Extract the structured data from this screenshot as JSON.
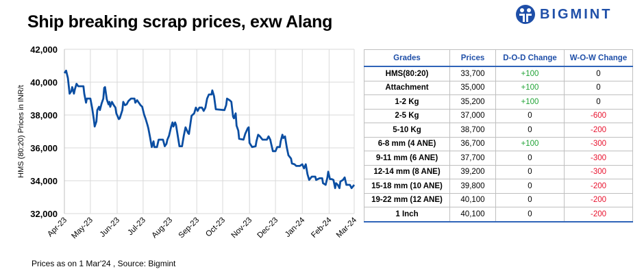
{
  "title": "Ship breaking scrap prices, exw Alang",
  "logo": {
    "text": "BIGMINT",
    "color": "#1f4fa8"
  },
  "source": "Prices as on 1 Mar'24 , Source: Bigmint",
  "colors": {
    "line": "#0b4ea2",
    "positive": "#21a336",
    "negative": "#e8112d",
    "header": "#1f4fa8"
  },
  "table": {
    "headers": [
      "Grades",
      "Prices",
      "D-O-D Change",
      "W-O-W Change"
    ],
    "rows": [
      [
        "HMS(80:20)",
        "33,700",
        "+100",
        "0"
      ],
      [
        "Attachment",
        "35,000",
        "+100",
        "0"
      ],
      [
        "1-2 Kg",
        "35,200",
        "+100",
        "0"
      ],
      [
        "2-5 Kg",
        "37,000",
        "0",
        "-600"
      ],
      [
        "5-10 Kg",
        "38,700",
        "0",
        "-200"
      ],
      [
        "6-8 mm (4 ANE)",
        "36,700",
        "+100",
        "-300"
      ],
      [
        "9-11 mm (6 ANE)",
        "37,700",
        "0",
        "-300"
      ],
      [
        "12-14 mm (8 ANE)",
        "39,200",
        "0",
        "-300"
      ],
      [
        "15-18 mm (10 ANE)",
        "39,800",
        "0",
        "-200"
      ],
      [
        "19-22 mm (12 ANE)",
        "40,100",
        "0",
        "-200"
      ],
      [
        "1 Inch",
        "40,100",
        "0",
        "-200"
      ]
    ]
  },
  "chart_data": {
    "type": "line",
    "title": "",
    "xlabel": "",
    "ylabel": "HMS (80:20) Prices in INR/t",
    "ylim": [
      32000,
      42000
    ],
    "yticks": [
      "32,000",
      "34,000",
      "36,000",
      "38,000",
      "40,000",
      "42,000"
    ],
    "xlim": [
      "2023-04-01",
      "2024-03-01"
    ],
    "xticks": [
      "Apr-23",
      "May-23",
      "Jun-23",
      "Jul-23",
      "Aug-23",
      "Sep-23",
      "Oct-23",
      "Nov-23",
      "Dec-23",
      "Jan-24",
      "Feb-24",
      "Mar-24"
    ],
    "grid": true,
    "legend": "none",
    "series": [
      {
        "points": [
          [
            "2023-04-01",
            40550
          ],
          [
            "2023-04-03",
            40700
          ],
          [
            "2023-04-05",
            40250
          ],
          [
            "2023-04-07",
            39300
          ],
          [
            "2023-04-09",
            39450
          ],
          [
            "2023-04-10",
            39700
          ],
          [
            "2023-04-12",
            39300
          ],
          [
            "2023-04-13",
            39550
          ],
          [
            "2023-04-15",
            39900
          ],
          [
            "2023-04-17",
            39750
          ],
          [
            "2023-04-23",
            39750
          ],
          [
            "2023-04-24",
            39300
          ],
          [
            "2023-04-26",
            38750
          ],
          [
            "2023-04-27",
            39000
          ],
          [
            "2023-05-01",
            39000
          ],
          [
            "2023-05-03",
            38450
          ],
          [
            "2023-05-05",
            37750
          ],
          [
            "2023-05-06",
            37300
          ],
          [
            "2023-05-08",
            37600
          ],
          [
            "2023-05-09",
            38300
          ],
          [
            "2023-05-11",
            38500
          ],
          [
            "2023-05-12",
            38300
          ],
          [
            "2023-05-14",
            38700
          ],
          [
            "2023-05-16",
            39000
          ],
          [
            "2023-05-17",
            39650
          ],
          [
            "2023-05-18",
            39700
          ],
          [
            "2023-05-20",
            38950
          ],
          [
            "2023-05-22",
            38650
          ],
          [
            "2023-05-23",
            38800
          ],
          [
            "2023-05-24",
            38500
          ],
          [
            "2023-05-26",
            38800
          ],
          [
            "2023-05-28",
            38600
          ],
          [
            "2023-05-30",
            38450
          ],
          [
            "2023-05-31",
            38100
          ],
          [
            "2023-06-03",
            37750
          ],
          [
            "2023-06-04",
            37800
          ],
          [
            "2023-06-07",
            38300
          ],
          [
            "2023-06-08",
            38800
          ],
          [
            "2023-06-10",
            38600
          ],
          [
            "2023-06-12",
            38650
          ],
          [
            "2023-06-14",
            38850
          ],
          [
            "2023-06-17",
            39000
          ],
          [
            "2023-06-21",
            39000
          ],
          [
            "2023-06-22",
            38750
          ],
          [
            "2023-06-24",
            38900
          ],
          [
            "2023-06-26",
            38750
          ],
          [
            "2023-06-28",
            38600
          ],
          [
            "2023-06-30",
            38500
          ],
          [
            "2023-07-02",
            38050
          ],
          [
            "2023-07-04",
            37750
          ],
          [
            "2023-07-06",
            37400
          ],
          [
            "2023-07-07",
            37200
          ],
          [
            "2023-07-09",
            36650
          ],
          [
            "2023-07-11",
            36050
          ],
          [
            "2023-07-13",
            36400
          ],
          [
            "2023-07-14",
            36050
          ],
          [
            "2023-07-17",
            36050
          ],
          [
            "2023-07-19",
            36500
          ],
          [
            "2023-07-24",
            36500
          ],
          [
            "2023-07-26",
            36100
          ],
          [
            "2023-07-28",
            36250
          ],
          [
            "2023-07-29",
            36500
          ],
          [
            "2023-07-31",
            36750
          ],
          [
            "2023-08-02",
            37200
          ],
          [
            "2023-08-04",
            37550
          ],
          [
            "2023-08-05",
            37300
          ],
          [
            "2023-08-07",
            37550
          ],
          [
            "2023-08-08",
            37400
          ],
          [
            "2023-08-10",
            36750
          ],
          [
            "2023-08-12",
            36100
          ],
          [
            "2023-08-15",
            36100
          ],
          [
            "2023-08-17",
            36750
          ],
          [
            "2023-08-19",
            37250
          ],
          [
            "2023-08-22",
            36900
          ],
          [
            "2023-08-23",
            36850
          ],
          [
            "2023-08-26",
            37950
          ],
          [
            "2023-08-29",
            38100
          ],
          [
            "2023-08-31",
            38450
          ],
          [
            "2023-09-02",
            38250
          ],
          [
            "2023-09-04",
            38450
          ],
          [
            "2023-09-07",
            38450
          ],
          [
            "2023-09-09",
            38250
          ],
          [
            "2023-09-11",
            38450
          ],
          [
            "2023-09-13",
            39000
          ],
          [
            "2023-09-15",
            39250
          ],
          [
            "2023-09-18",
            39250
          ],
          [
            "2023-09-19",
            39500
          ],
          [
            "2023-09-21",
            39150
          ],
          [
            "2023-09-23",
            38350
          ],
          [
            "2023-10-03",
            38300
          ],
          [
            "2023-10-05",
            38600
          ],
          [
            "2023-10-06",
            39000
          ],
          [
            "2023-10-09",
            38900
          ],
          [
            "2023-10-11",
            38800
          ],
          [
            "2023-10-13",
            37900
          ],
          [
            "2023-10-14",
            37800
          ],
          [
            "2023-10-16",
            38100
          ],
          [
            "2023-10-17",
            37350
          ],
          [
            "2023-10-19",
            37050
          ],
          [
            "2023-10-20",
            36550
          ],
          [
            "2023-10-25",
            36500
          ],
          [
            "2023-10-27",
            36850
          ],
          [
            "2023-10-30",
            37200
          ],
          [
            "2023-10-31",
            37250
          ],
          [
            "2023-11-01",
            36300
          ],
          [
            "2023-11-04",
            36050
          ],
          [
            "2023-11-08",
            36100
          ],
          [
            "2023-11-09",
            36400
          ],
          [
            "2023-11-11",
            36800
          ],
          [
            "2023-11-13",
            36700
          ],
          [
            "2023-11-16",
            36500
          ],
          [
            "2023-11-21",
            36500
          ],
          [
            "2023-11-23",
            36700
          ],
          [
            "2023-11-25",
            36500
          ],
          [
            "2023-11-26",
            36250
          ],
          [
            "2023-11-28",
            35800
          ],
          [
            "2023-12-01",
            35800
          ],
          [
            "2023-12-03",
            36050
          ],
          [
            "2023-12-06",
            36050
          ],
          [
            "2023-12-07",
            36400
          ],
          [
            "2023-12-09",
            36800
          ],
          [
            "2023-12-10",
            36600
          ],
          [
            "2023-12-12",
            36700
          ],
          [
            "2023-12-14",
            36050
          ],
          [
            "2023-12-16",
            35550
          ],
          [
            "2023-12-19",
            35350
          ],
          [
            "2023-12-20",
            35050
          ],
          [
            "2023-12-23",
            35000
          ],
          [
            "2023-12-25",
            34900
          ],
          [
            "2023-12-29",
            34900
          ],
          [
            "2024-01-01",
            35000
          ],
          [
            "2024-01-03",
            34750
          ],
          [
            "2024-01-05",
            35000
          ],
          [
            "2024-01-07",
            34400
          ],
          [
            "2024-01-09",
            34050
          ],
          [
            "2024-01-12",
            34250
          ],
          [
            "2024-01-16",
            34250
          ],
          [
            "2024-01-17",
            34050
          ],
          [
            "2024-01-21",
            34150
          ],
          [
            "2024-01-24",
            34150
          ],
          [
            "2024-01-25",
            33850
          ],
          [
            "2024-01-28",
            33750
          ],
          [
            "2024-01-30",
            34200
          ],
          [
            "2024-01-31",
            34550
          ],
          [
            "2024-02-02",
            34100
          ],
          [
            "2024-02-04",
            34100
          ],
          [
            "2024-02-06",
            34050
          ],
          [
            "2024-02-08",
            33550
          ],
          [
            "2024-02-09",
            33850
          ],
          [
            "2024-02-11",
            33750
          ],
          [
            "2024-02-13",
            33550
          ],
          [
            "2024-02-14",
            33950
          ],
          [
            "2024-02-17",
            34050
          ],
          [
            "2024-02-19",
            34200
          ],
          [
            "2024-02-21",
            33750
          ],
          [
            "2024-02-25",
            33750
          ],
          [
            "2024-02-27",
            33550
          ],
          [
            "2024-03-01",
            33750
          ]
        ]
      }
    ]
  }
}
